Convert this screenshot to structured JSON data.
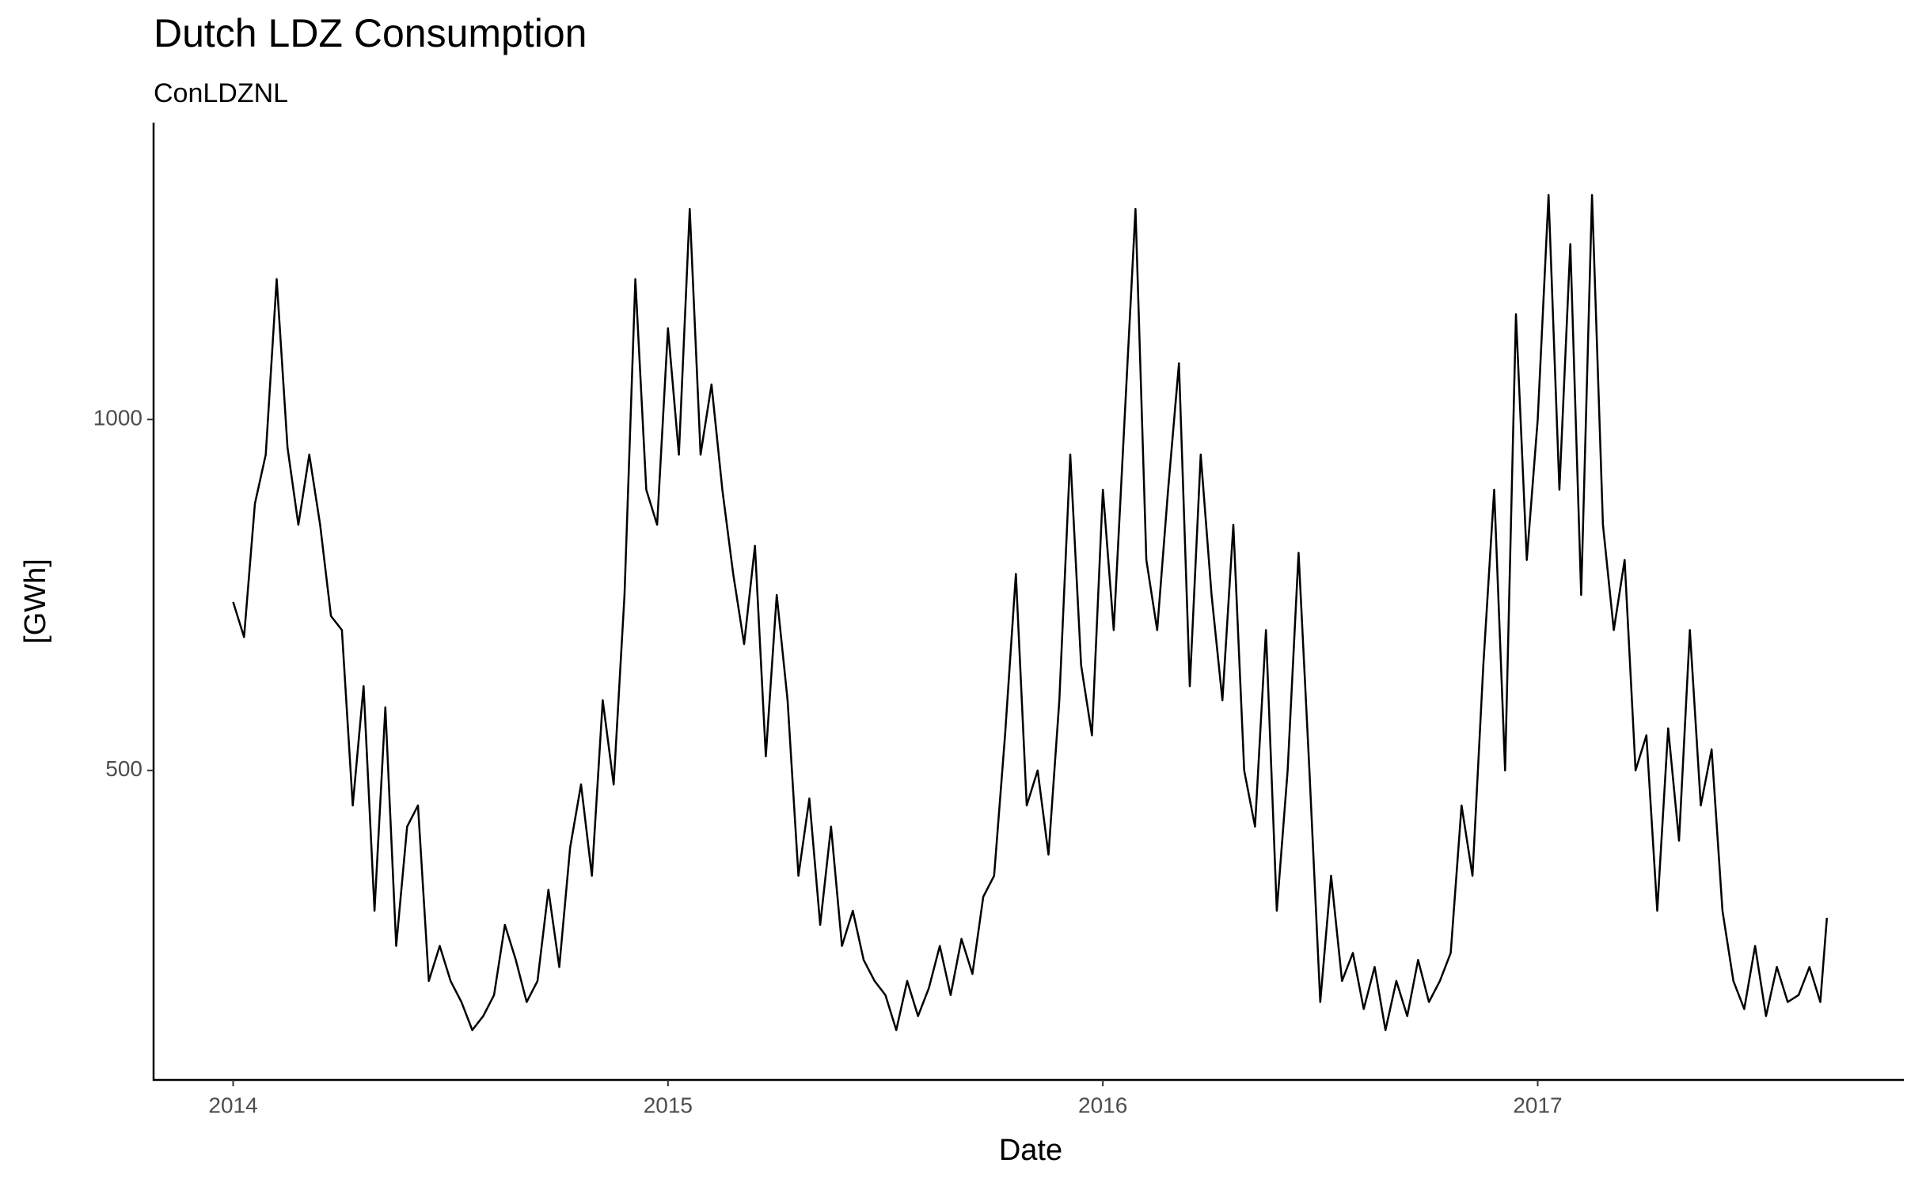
{
  "chart_data": {
    "type": "line",
    "title": "Dutch LDZ Consumption",
    "subtitle": "ConLDZNL",
    "x_label": "Date",
    "y_label": "[GWh]",
    "color": "#000000",
    "grid": false,
    "xlim": [
      2013.817,
      2017.842
    ],
    "xticks": [
      2014,
      2015,
      2016,
      2017
    ],
    "ylim": [
      59,
      1423
    ],
    "yticks": [
      500,
      1000
    ],
    "x": [
      2014,
      2014.025,
      2014.05,
      2014.075,
      2014.1,
      2014.125,
      2014.15,
      2014.175,
      2014.2,
      2014.225,
      2014.25,
      2014.275,
      2014.3,
      2014.325,
      2014.35,
      2014.375,
      2014.4,
      2014.425,
      2014.45,
      2014.475,
      2014.5,
      2014.525,
      2014.55,
      2014.575,
      2014.6,
      2014.625,
      2014.65,
      2014.675,
      2014.7,
      2014.725,
      2014.75,
      2014.775,
      2014.8,
      2014.825,
      2014.85,
      2014.875,
      2014.9,
      2014.925,
      2014.95,
      2014.975,
      2015,
      2015.025,
      2015.05,
      2015.075,
      2015.1,
      2015.125,
      2015.15,
      2015.175,
      2015.2,
      2015.225,
      2015.25,
      2015.275,
      2015.3,
      2015.325,
      2015.35,
      2015.375,
      2015.4,
      2015.425,
      2015.45,
      2015.475,
      2015.5,
      2015.525,
      2015.55,
      2015.575,
      2015.6,
      2015.625,
      2015.65,
      2015.675,
      2015.7,
      2015.725,
      2015.75,
      2015.775,
      2015.8,
      2015.825,
      2015.85,
      2015.875,
      2015.9,
      2015.925,
      2015.95,
      2015.975,
      2016,
      2016.025,
      2016.05,
      2016.075,
      2016.1,
      2016.125,
      2016.15,
      2016.175,
      2016.2,
      2016.225,
      2016.25,
      2016.275,
      2016.3,
      2016.325,
      2016.35,
      2016.375,
      2016.4,
      2016.425,
      2016.45,
      2016.475,
      2016.5,
      2016.525,
      2016.55,
      2016.575,
      2016.6,
      2016.625,
      2016.65,
      2016.675,
      2016.7,
      2016.725,
      2016.75,
      2016.775,
      2016.8,
      2016.825,
      2016.85,
      2016.875,
      2016.9,
      2016.925,
      2016.95,
      2016.975,
      2017,
      2017.025,
      2017.05,
      2017.075,
      2017.1,
      2017.125,
      2017.15,
      2017.175,
      2017.2,
      2017.225,
      2017.25,
      2017.275,
      2017.3,
      2017.325,
      2017.35,
      2017.375,
      2017.4,
      2017.425,
      2017.45,
      2017.475,
      2017.5,
      2017.525,
      2017.55,
      2017.575,
      2017.6,
      2017.625,
      2017.65,
      2017.665
    ],
    "values": [
      740,
      690,
      880,
      950,
      1200,
      960,
      850,
      950,
      850,
      720,
      700,
      450,
      620,
      300,
      590,
      250,
      420,
      450,
      200,
      250,
      200,
      170,
      130,
      150,
      180,
      280,
      230,
      170,
      200,
      330,
      220,
      390,
      480,
      350,
      600,
      480,
      750,
      1200,
      900,
      850,
      1130,
      950,
      1300,
      950,
      1050,
      900,
      780,
      680,
      820,
      520,
      750,
      600,
      350,
      460,
      280,
      420,
      250,
      300,
      230,
      200,
      180,
      130,
      200,
      150,
      190,
      250,
      180,
      260,
      210,
      320,
      350,
      550,
      780,
      450,
      500,
      380,
      600,
      950,
      650,
      550,
      900,
      700,
      1000,
      1300,
      800,
      700,
      900,
      1080,
      620,
      950,
      750,
      600,
      850,
      500,
      420,
      700,
      300,
      500,
      810,
      500,
      170,
      350,
      200,
      240,
      160,
      220,
      130,
      200,
      150,
      230,
      170,
      200,
      240,
      450,
      350,
      650,
      900,
      500,
      1150,
      800,
      1000,
      1320,
      900,
      1250,
      750,
      1320,
      850,
      700,
      800,
      500,
      550,
      300,
      560,
      400,
      700,
      450,
      530,
      300,
      200,
      160,
      250,
      150,
      220,
      170,
      180,
      220,
      170,
      290
    ]
  }
}
